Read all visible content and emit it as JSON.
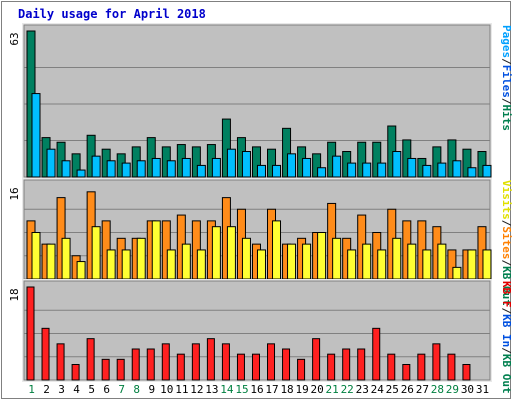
{
  "chart_data": {
    "type": "bar",
    "title": "Daily usage for April 2018",
    "days": [
      "1",
      "2",
      "3",
      "4",
      "5",
      "6",
      "7",
      "8",
      "9",
      "10",
      "11",
      "12",
      "13",
      "14",
      "15",
      "16",
      "17",
      "18",
      "19",
      "20",
      "21",
      "22",
      "23",
      "24",
      "25",
      "26",
      "27",
      "28",
      "29",
      "30",
      "31"
    ],
    "weekend_days": [
      "1",
      "7",
      "8",
      "14",
      "15",
      "21",
      "22",
      "28",
      "29"
    ],
    "panels": [
      {
        "id": "hits-pages",
        "ymax_label": "63",
        "ymax": 63,
        "legend": [
          {
            "label": "Pages",
            "color": "#00a0ff"
          },
          {
            "label": "/",
            "color": "#202020"
          },
          {
            "label": "Files",
            "color": "#0050e0"
          },
          {
            "label": "/",
            "color": "#202020"
          },
          {
            "label": "Hits",
            "color": "#00804f"
          }
        ],
        "series": [
          {
            "name": "Hits",
            "color": "#008060",
            "values": [
              63,
              17,
              15,
              10,
              18,
              12,
              10,
              13,
              17,
              13,
              14,
              13,
              14,
              25,
              17,
              13,
              12,
              21,
              13,
              10,
              15,
              11,
              15,
              15,
              22,
              16,
              8,
              13,
              16,
              12,
              11
            ]
          },
          {
            "name": "Pages",
            "color": "#00bfff",
            "values": [
              36,
              12,
              7,
              3,
              9,
              7,
              6,
              7,
              8,
              7,
              8,
              5,
              8,
              12,
              11,
              5,
              5,
              10,
              8,
              4,
              9,
              6,
              6,
              6,
              11,
              8,
              5,
              6,
              7,
              4,
              5
            ]
          }
        ]
      },
      {
        "id": "visits-sites",
        "ymax_label": "16",
        "ymax": 16,
        "legend": [
          {
            "label": "Visits",
            "color": "#e0e000"
          },
          {
            "label": "/",
            "color": "#202020"
          },
          {
            "label": "Sites",
            "color": "#ff8000"
          },
          {
            "label": "/",
            "color": "#202020"
          },
          {
            "label": "KB Out",
            "color": "#00804f"
          }
        ],
        "series": [
          {
            "name": "Sites",
            "color": "#ff8c1a",
            "values": [
              10,
              6,
              14,
              4,
              15,
              10,
              7,
              7,
              10,
              10,
              11,
              10,
              10,
              14,
              12,
              6,
              12,
              6,
              7,
              8,
              13,
              7,
              11,
              8,
              12,
              10,
              10,
              9,
              5,
              5,
              9
            ]
          },
          {
            "name": "Visits",
            "color": "#ffff33",
            "values": [
              8,
              6,
              7,
              3,
              9,
              5,
              5,
              7,
              10,
              5,
              6,
              5,
              9,
              9,
              7,
              5,
              10,
              6,
              6,
              8,
              7,
              5,
              6,
              5,
              7,
              6,
              5,
              6,
              2,
              5,
              5
            ]
          }
        ]
      },
      {
        "id": "kb-transfer",
        "ymax_label": "18",
        "ymax": 18,
        "legend": [
          {
            "label": "KB F",
            "color": "#e00000"
          },
          {
            "label": "/",
            "color": "#202020"
          },
          {
            "label": "KB In",
            "color": "#0050e0"
          },
          {
            "label": "/",
            "color": "#202020"
          },
          {
            "label": "KB Out",
            "color": "#00804f"
          }
        ],
        "series": [
          {
            "name": "KB F",
            "color": "#ff2020",
            "values": [
              18,
              10,
              7,
              3,
              8,
              4,
              4,
              6,
              6,
              7,
              5,
              7,
              8,
              7,
              5,
              5,
              7,
              6,
              4,
              8,
              5,
              6,
              6,
              10,
              5,
              3,
              5,
              7,
              5,
              3,
              0
            ]
          }
        ]
      }
    ]
  }
}
